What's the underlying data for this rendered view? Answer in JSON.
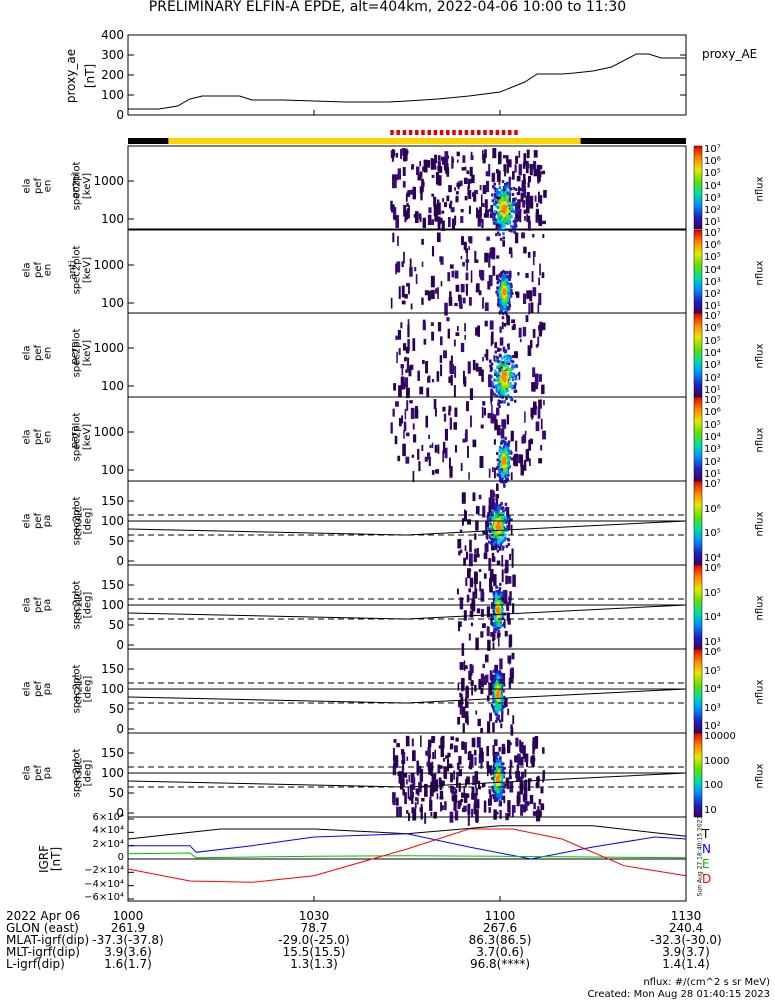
{
  "title": "PRELIMINARY ELFIN-A EPDE, alt=404km, 2022-04-06 10:00 to 11:30",
  "proxy_ae": {
    "ylabel_1": "proxy_ae",
    "ylabel_2": "[nT]",
    "legend": "proxy_AE",
    "yticks": [
      "400",
      "300",
      "200",
      "100",
      "0"
    ]
  },
  "energy_panels": [
    {
      "labels": [
        "ela",
        "pef",
        "en",
        "spec2plot",
        "omni",
        "[keV]"
      ],
      "yticks": [
        "1000",
        "100"
      ]
    },
    {
      "labels": [
        "ela",
        "pef",
        "en",
        "spec2plot",
        "anti",
        "[keV]"
      ],
      "yticks": [
        "1000",
        "100"
      ]
    },
    {
      "labels": [
        "ela",
        "pef",
        "en",
        "spec2plot",
        "perp",
        "[keV]"
      ],
      "yticks": [
        "1000",
        "100"
      ]
    },
    {
      "labels": [
        "ela",
        "pef",
        "en",
        "spec2plot",
        "para",
        "[keV]"
      ],
      "yticks": [
        "1000",
        "100"
      ]
    }
  ],
  "pa_panels": [
    {
      "labels": [
        "ela",
        "pef",
        "pa",
        "spec2plot",
        "ch0LC",
        "[deg]"
      ],
      "yticks": [
        "150",
        "100",
        "50",
        "0"
      ]
    },
    {
      "labels": [
        "ela",
        "pef",
        "pa",
        "spec2plot",
        "ch1LC",
        "[deg]"
      ],
      "yticks": [
        "150",
        "100",
        "50",
        "0"
      ]
    },
    {
      "labels": [
        "ela",
        "pef",
        "pa",
        "spec2plot",
        "ch2LC",
        "[deg]"
      ],
      "yticks": [
        "150",
        "100",
        "50",
        "0"
      ]
    },
    {
      "labels": [
        "ela",
        "pef",
        "pa",
        "spec2plot",
        "ch3LC",
        "[deg]"
      ],
      "yticks": [
        "150",
        "100",
        "50",
        "0"
      ]
    }
  ],
  "colorbars": [
    {
      "ticks": [
        "10⁷",
        "10⁶",
        "10⁵",
        "10⁴",
        "10³",
        "10²",
        "10¹"
      ],
      "unit": "nflux"
    },
    {
      "ticks": [
        "10⁷",
        "10⁶",
        "10⁵",
        "10⁴",
        "10³",
        "10²",
        "10¹"
      ],
      "unit": "nflux"
    },
    {
      "ticks": [
        "10⁷",
        "10⁶",
        "10⁵",
        "10⁴",
        "10³",
        "10²",
        "10¹"
      ],
      "unit": "nflux"
    },
    {
      "ticks": [
        "10⁷",
        "10⁶",
        "10⁵",
        "10⁴",
        "10³",
        "10²",
        "10¹"
      ],
      "unit": "nflux"
    },
    {
      "ticks": [
        "10⁷",
        "10⁶",
        "10⁵",
        "10⁴"
      ],
      "unit": "nflux"
    },
    {
      "ticks": [
        "10⁶",
        "10⁵",
        "10⁴",
        "10³"
      ],
      "unit": "nflux"
    },
    {
      "ticks": [
        "10⁶",
        "10⁵",
        "10⁴",
        "10³",
        "10²"
      ],
      "unit": "nflux"
    },
    {
      "ticks": [
        "10000",
        "1000",
        "100",
        "10"
      ],
      "unit": "nflux"
    }
  ],
  "igrf": {
    "ylabel_1": "IGRF",
    "ylabel_2": "[nT]",
    "yticks": [
      "6×10⁴",
      "4×10⁴",
      "2×10⁴",
      "0",
      "−2×10⁴",
      "−4×10⁴",
      "−6×10⁴"
    ],
    "legend": [
      "T",
      "N",
      "E",
      "D"
    ],
    "colors": [
      "#000000",
      "#0000ff",
      "#00c000",
      "#ff0000"
    ],
    "side_note": "Sun Aug 27 18:40:15 2023"
  },
  "footer": {
    "rows": [
      {
        "label": "2022 Apr 06",
        "values": [
          "1000",
          "1030",
          "1100",
          "1130"
        ]
      },
      {
        "label": "GLON (east)",
        "values": [
          "261.9",
          "78.7",
          "267.6",
          "240.4"
        ]
      },
      {
        "label": "MLAT-igrf(dip)",
        "values": [
          "-37.3(-37.8)",
          "-29.0(-25.0)",
          "86.3(86.5)",
          "-32.3(-30.0)"
        ]
      },
      {
        "label": "MLT-igrf(dip)",
        "values": [
          "3.9(3.6)",
          "15.5(15.5)",
          "3.7(0.6)",
          "3.9(3.7)"
        ]
      },
      {
        "label": "L-igrf(dip)",
        "values": [
          "1.6(1.7)",
          "1.3(1.3)",
          "96.8(****)",
          "1.4(1.4)"
        ]
      }
    ],
    "units_note": "nflux: #/(cm^2 s sr MeV)",
    "created": "Created: Mon Aug 28 01:40:15 2023"
  },
  "chart_data": [
    {
      "type": "line",
      "name": "proxy_ae",
      "x_minutes": [
        0,
        5,
        8,
        10,
        12,
        15,
        18,
        20,
        22,
        25,
        30,
        35,
        40,
        42,
        45,
        50,
        55,
        60,
        64,
        66,
        70,
        72,
        75,
        78,
        82,
        84,
        86,
        90
      ],
      "values": [
        30,
        30,
        45,
        80,
        95,
        95,
        95,
        75,
        75,
        75,
        70,
        65,
        65,
        65,
        70,
        80,
        95,
        115,
        165,
        205,
        205,
        210,
        220,
        240,
        305,
        305,
        285,
        285
      ],
      "ylim": [
        0,
        400
      ],
      "xlim": [
        0,
        90
      ]
    },
    {
      "type": "heatmap",
      "name": "energy spectrograms",
      "x_range_minutes": [
        42.3,
        67.0
      ],
      "note": "electron flux, log scale"
    },
    {
      "type": "line",
      "name": "IGRF components",
      "xlim": [
        0,
        90
      ],
      "ylim": [
        -60000,
        60000
      ],
      "series": [
        {
          "name": "T",
          "x": [
            0,
            15,
            30,
            45,
            60,
            75,
            90
          ],
          "values": [
            30000,
            45000,
            45000,
            38000,
            50000,
            50000,
            34000
          ]
        },
        {
          "name": "N",
          "x": [
            0,
            10,
            11,
            20,
            30,
            45,
            55,
            65,
            75,
            85,
            90
          ],
          "values": [
            20000,
            20000,
            10000,
            20000,
            33000,
            38000,
            18000,
            0,
            18000,
            33000,
            30000
          ]
        },
        {
          "name": "E",
          "x": [
            0,
            10,
            11,
            30,
            45,
            60,
            75,
            90
          ],
          "values": [
            8000,
            9000,
            2000,
            4000,
            5000,
            4000,
            3000,
            2000
          ]
        },
        {
          "name": "D",
          "x": [
            0,
            10,
            20,
            30,
            45,
            55,
            62,
            70,
            80,
            90
          ],
          "values": [
            -15000,
            -33000,
            -35000,
            -25000,
            15000,
            45000,
            45000,
            30000,
            -10000,
            -25000
          ]
        }
      ]
    }
  ]
}
